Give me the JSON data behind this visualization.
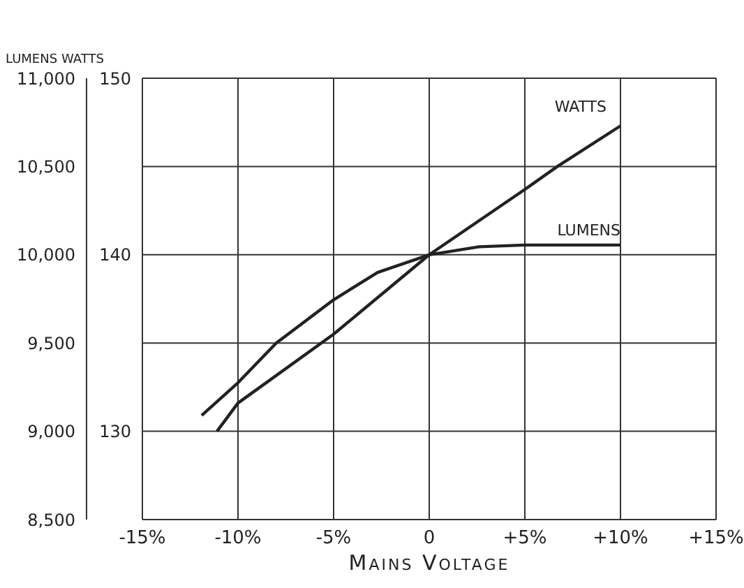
{
  "chart_data": {
    "type": "line",
    "xlabel": "Mains Voltage",
    "ylabel": "LUMENS",
    "y2label": "WATTS",
    "xlim": [
      -15,
      15
    ],
    "xticks": [
      {
        "value": -15,
        "label": "-15%"
      },
      {
        "value": -10,
        "label": "-10%"
      },
      {
        "value": -5,
        "label": "-5%"
      },
      0,
      {
        "value": 5,
        "label": "+5%"
      },
      {
        "value": 10,
        "label": "+10%"
      },
      {
        "value": 15,
        "label": "+15%"
      }
    ],
    "ylim": [
      8500,
      11000
    ],
    "yticks": [
      {
        "value": 8500,
        "label": "8,500"
      },
      {
        "value": 9000,
        "label": "9,000"
      },
      {
        "value": 9500,
        "label": "9,500"
      },
      {
        "value": 10000,
        "label": "10,000"
      },
      {
        "value": 10500,
        "label": "10,500"
      },
      {
        "value": 11000,
        "label": "11,000"
      }
    ],
    "y2lim": [
      125,
      150
    ],
    "y2ticks": [
      130,
      140,
      150
    ],
    "grid": true,
    "marker": "none",
    "line_style": "solid",
    "series": [
      {
        "name": "WATTS",
        "color": "#222222",
        "axis": "y2",
        "x": [
          -11.1,
          -10,
          -5,
          0,
          5,
          6.7,
          10
        ],
        "values": [
          130,
          131.6,
          135.5,
          140,
          143.7,
          145,
          147.3
        ]
      },
      {
        "name": "LUMENS",
        "color": "#222222",
        "x": [
          -11.9,
          -10,
          -8,
          -5,
          -2.7,
          0,
          2.6,
          5,
          10
        ],
        "values": [
          9090,
          9275,
          9500,
          9745,
          9900,
          10000,
          10045,
          10055,
          10055
        ]
      }
    ]
  }
}
